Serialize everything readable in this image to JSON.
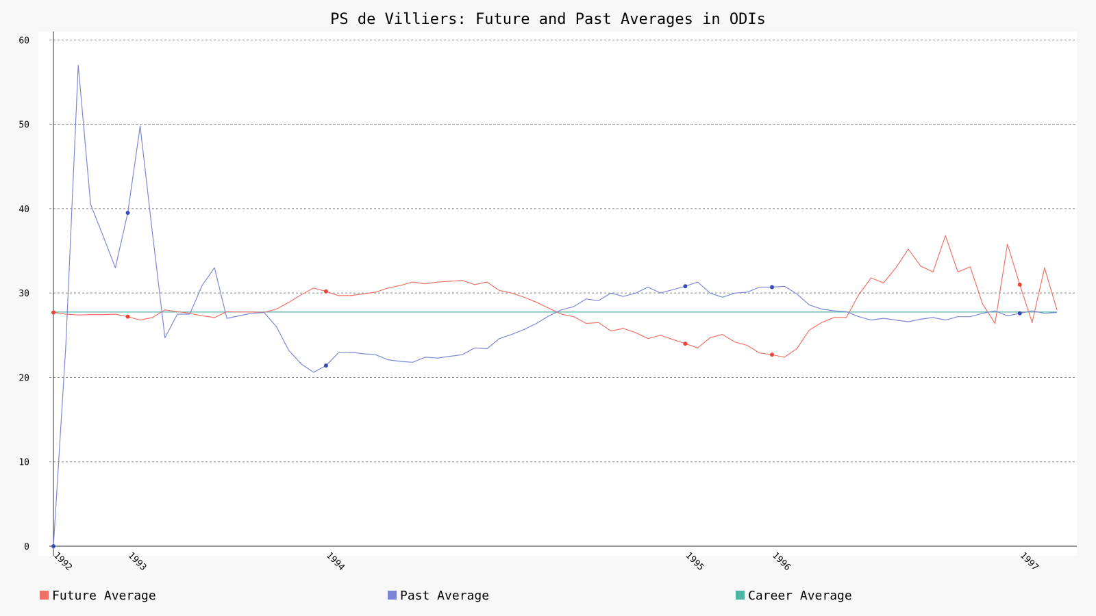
{
  "chart_data": {
    "type": "line",
    "title": "PS de Villiers: Future and Past Averages in ODIs",
    "xlabel": "",
    "ylabel": "",
    "ylim": [
      0,
      61
    ],
    "y_ticks": [
      0,
      10,
      20,
      30,
      40,
      50,
      60
    ],
    "grid": true,
    "legend_position": "bottom",
    "n_points": 82,
    "x_labels": [
      {
        "label": "1992",
        "index": 0
      },
      {
        "label": "1993",
        "index": 6
      },
      {
        "label": "1994",
        "index": 22
      },
      {
        "label": "1995",
        "index": 51
      },
      {
        "label": "1996",
        "index": 58
      },
      {
        "label": "1997",
        "index": 78
      }
    ],
    "series": [
      {
        "name": "Future Average",
        "color": "#f07167",
        "dot_color": "#e8443a",
        "dots": [
          0,
          6,
          22,
          51,
          58,
          78
        ],
        "values": [
          27.7,
          27.5,
          27.4,
          27.45,
          27.45,
          27.5,
          27.2,
          26.8,
          27.1,
          28.0,
          27.8,
          27.6,
          27.3,
          27.1,
          27.8,
          27.75,
          27.75,
          27.7,
          28.1,
          28.9,
          29.8,
          30.6,
          30.2,
          29.7,
          29.7,
          29.9,
          30.1,
          30.6,
          30.9,
          31.3,
          31.1,
          31.3,
          31.4,
          31.5,
          31.0,
          31.3,
          30.3,
          30.0,
          29.5,
          28.9,
          28.2,
          27.5,
          27.2,
          26.4,
          26.5,
          25.5,
          25.8,
          25.3,
          24.6,
          25.0,
          24.5,
          24.0,
          23.5,
          24.7,
          25.1,
          24.2,
          23.8,
          22.9,
          22.7,
          22.4,
          23.4,
          25.6,
          26.5,
          27.1,
          27.1,
          29.8,
          31.8,
          31.2,
          33.0,
          35.2,
          33.2,
          32.5,
          36.8,
          32.5,
          33.1,
          28.7,
          26.4,
          35.8,
          31.0,
          26.5,
          33.0,
          28.0
        ]
      },
      {
        "name": "Past Average",
        "color": "#7b87d6",
        "dot_color": "#3a4db5",
        "dots": [
          0,
          6,
          22,
          51,
          58,
          78
        ],
        "values": [
          0,
          23.8,
          57.0,
          40.5,
          36.8,
          33.0,
          39.5,
          49.8,
          37.0,
          24.7,
          27.5,
          27.5,
          30.9,
          33.0,
          27.0,
          27.3,
          27.6,
          27.7,
          26.0,
          23.2,
          21.6,
          20.6,
          21.4,
          22.9,
          23.0,
          22.8,
          22.7,
          22.1,
          21.9,
          21.8,
          22.4,
          22.3,
          22.5,
          22.7,
          23.5,
          23.4,
          24.6,
          25.1,
          25.7,
          26.4,
          27.3,
          28.0,
          28.4,
          29.3,
          29.1,
          30.0,
          29.6,
          30.0,
          30.7,
          30.0,
          30.4,
          30.8,
          31.3,
          30.0,
          29.5,
          30.0,
          30.1,
          30.7,
          30.7,
          30.8,
          29.9,
          28.6,
          28.1,
          27.9,
          27.8,
          27.2,
          26.8,
          27.0,
          26.8,
          26.6,
          26.9,
          27.1,
          26.8,
          27.2,
          27.2,
          27.6,
          27.9,
          27.3,
          27.6,
          27.9,
          27.6,
          27.7
        ]
      },
      {
        "name": "Career Average",
        "color": "#4db6a4",
        "dots": [],
        "values": [
          27.75,
          27.75,
          27.75,
          27.75,
          27.75,
          27.75,
          27.75,
          27.75,
          27.75,
          27.75,
          27.75,
          27.75,
          27.75,
          27.75,
          27.75,
          27.75,
          27.75,
          27.75,
          27.75,
          27.75,
          27.75,
          27.75,
          27.75,
          27.75,
          27.75,
          27.75,
          27.75,
          27.75,
          27.75,
          27.75,
          27.75,
          27.75,
          27.75,
          27.75,
          27.75,
          27.75,
          27.75,
          27.75,
          27.75,
          27.75,
          27.75,
          27.75,
          27.75,
          27.75,
          27.75,
          27.75,
          27.75,
          27.75,
          27.75,
          27.75,
          27.75,
          27.75,
          27.75,
          27.75,
          27.75,
          27.75,
          27.75,
          27.75,
          27.75,
          27.75,
          27.75,
          27.75,
          27.75,
          27.75,
          27.75,
          27.75,
          27.75,
          27.75,
          27.75,
          27.75,
          27.75,
          27.75,
          27.75,
          27.75,
          27.75,
          27.75,
          27.75,
          27.75,
          27.75,
          27.75,
          27.75,
          27.75
        ]
      }
    ]
  }
}
